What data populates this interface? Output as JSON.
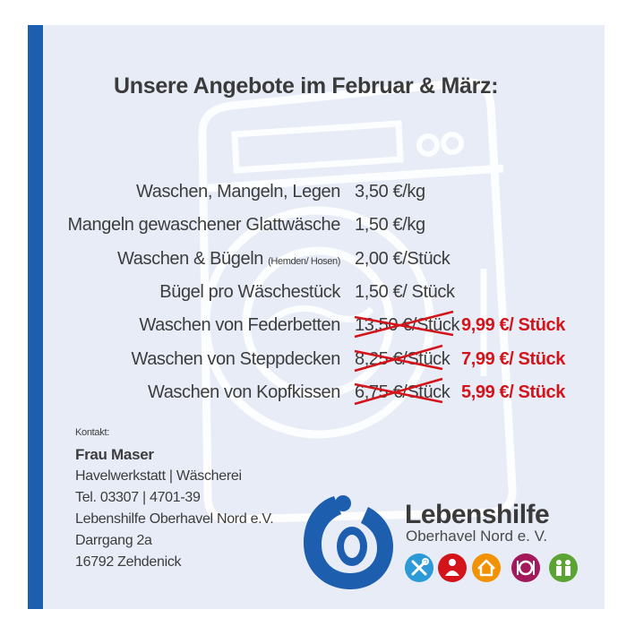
{
  "title": "Unsere Angebote im Februar & März:",
  "offers": [
    {
      "label": "Waschen, Mangeln, Legen",
      "price": "3,50 €/kg"
    },
    {
      "label": "Mangeln gewaschener Glattwäsche",
      "price": "1,50 €/kg"
    },
    {
      "label": "Waschen & Bügeln",
      "label_note": "(Hemden/ Hosen)",
      "price": "2,00 €/Stück"
    },
    {
      "label": "Bügel pro Wäschestück",
      "price": "1,50 €/ Stück"
    },
    {
      "label": "Waschen von Federbetten",
      "old_price": "13,50 €/Stück",
      "new_price": "9,99 €/ Stück"
    },
    {
      "label": "Waschen von Steppdecken",
      "old_price": "8,25 €/Stück",
      "new_price": "7,99 €/ Stück"
    },
    {
      "label": "Waschen von Kopfkissen",
      "old_price": "6,75 €/Stück",
      "new_price": "5,99 €/ Stück"
    }
  ],
  "contact": {
    "heading": "Kontakt:",
    "name": "Frau Maser",
    "lines": [
      "Havelwerkstatt | Wäscherei",
      "Tel. 03307 | 4701-39",
      "Lebenshilfe Oberhavel Nord e.V.",
      "Darrgang 2a",
      "16792 Zehdenick"
    ]
  },
  "brand": {
    "name": "Lebenshilfe",
    "subtitle": "Oberhavel Nord e. V.",
    "icons": [
      {
        "name": "tools-icon",
        "color": "#2c9ad6"
      },
      {
        "name": "person-icon",
        "color": "#d4141b"
      },
      {
        "name": "house-icon",
        "color": "#f39200"
      },
      {
        "name": "plate-icon",
        "color": "#a3195b"
      },
      {
        "name": "family-icon",
        "color": "#5ba434"
      }
    ]
  },
  "colors": {
    "accent_bar": "#1d5fae",
    "sale": "#d4141b",
    "card": "#e7ecf6"
  }
}
